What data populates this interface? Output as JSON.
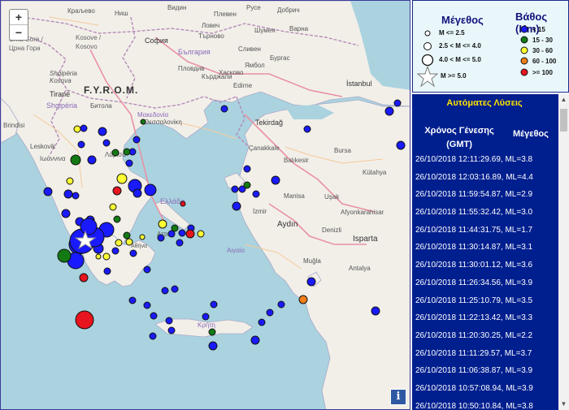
{
  "map": {
    "zoom_in": "+",
    "zoom_out": "−",
    "info": "i",
    "labels": {
      "kraljevo": "Краљево",
      "nis": "Ниш",
      "vidin": "Видин",
      "pleven": "Плевен",
      "ruse": "Русе",
      "dobrich": "Добрич",
      "lovech": "Ловеч",
      "shumen": "Шумен",
      "varna": "Варна",
      "crna_gora": "Crna Gora /",
      "crna_gora2": "Црна Гора",
      "kosovo": "Kosove /",
      "kosovo2": "Kosovo",
      "sofia": "София",
      "tarnovo": "Търново",
      "bulgaria": "България",
      "sliven": "Сливен",
      "burgas": "Бургас",
      "shqiperia": "Shqipëria",
      "kosova3": "Kosova",
      "yambol": "Ямбол",
      "plovdiv": "Пловдив",
      "kardzhali": "Кърджали",
      "haskovo": "Хасково",
      "edirne": "Edirne",
      "istanbul": "İstanbul",
      "fyrom": "F.Y.R.O.M.",
      "tirane": "Tiranë",
      "shqiperia2": "Shqipëria",
      "bitola": "Битола",
      "makedonia": "Μακεδονία",
      "thessaloniki": "Θεσσαλονίκη",
      "tekirdag": "Tekirdağ",
      "brindisi": "Brindisi",
      "leskovik": "Leskovik",
      "ioannina": "Ιωάννινα",
      "larisa": "Λάρισα",
      "canakkale": "Çanakkale",
      "balikesir": "Balıkesir",
      "bursa": "Bursa",
      "kutahya": "Kütahya",
      "manisa": "Manisa",
      "usak": "Uşak",
      "afyon": "Afyonkarahisar",
      "izmir": "İzmir",
      "ellada": "Ελλάδα",
      "aydin": "Aydın",
      "denizli": "Denizli",
      "isparta": "Isparta",
      "mugla": "Muğla",
      "antalya": "Antalya",
      "attiki": "Αττική",
      "athina": "Αθήνα",
      "aigaio": "Αιγαίο",
      "kriti": "Κρήτη"
    }
  },
  "legend": {
    "mag_title": "Μέγεθος",
    "depth_title": "Βάθος (Km)",
    "mag_items": [
      "M <= 2.5",
      "2.5 < M <= 4.0",
      "4.0 < M <= 5.0",
      "M >= 5.0"
    ],
    "depth_items": [
      {
        "label": "< 15",
        "color": "#1a1aff"
      },
      {
        "label": "15 - 30",
        "color": "#137a13"
      },
      {
        "label": "30 - 60",
        "color": "#ffff33"
      },
      {
        "label": "60 - 100",
        "color": "#f07d1a"
      },
      {
        "label": ">= 100",
        "color": "#e8141e"
      }
    ]
  },
  "list": {
    "title": "Αυτόματες Λύσεις",
    "col_time": "Χρόνος Γένεσης (GMT)",
    "col_mag": "Μέγεθος",
    "rows": [
      "26/10/2018 12:11:29.69, ML=3.8",
      "26/10/2018 12:03:16.89, ML=4.4",
      "26/10/2018 11:59:54.87, ML=2.9",
      "26/10/2018 11:55:32.42, ML=3.0",
      "26/10/2018 11:44:31.75, ML=1.7",
      "26/10/2018 11:30:14.87, ML=3.1",
      "26/10/2018 11:30:01.12, ML=3.6",
      "26/10/2018 11:26:34.56, ML=3.9",
      "26/10/2018 11:25:10.79, ML=3.5",
      "26/10/2018 11:22:13.42, ML=3.3",
      "26/10/2018 11:20:30.25, ML=2.2",
      "26/10/2018 11:11:29.57, ML=3.7",
      "26/10/2018 11:06:38.87, ML=3.9",
      "26/10/2018 10:57:08.94, ML=3.9",
      "26/10/2018 10:50:10.84, ML=3.8"
    ]
  }
}
